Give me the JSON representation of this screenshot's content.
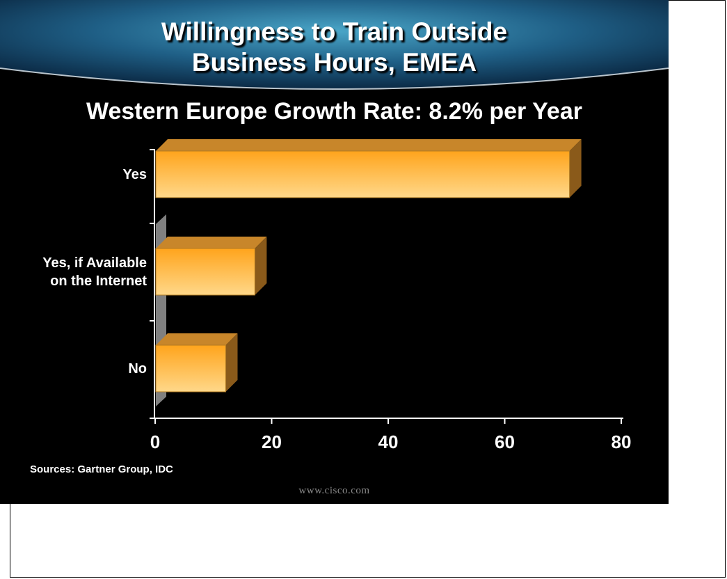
{
  "slide": {
    "title_line1": "Willingness to Train Outside",
    "title_line2": "Business Hours, EMEA",
    "subtitle": "Western Europe Growth Rate:  8.2% per Year",
    "source": "Sources: Gartner Group, IDC",
    "footer_url": "www.cisco.com"
  },
  "colors": {
    "background": "#000000",
    "bar_face_top": "#ffa41c",
    "bar_face_bottom": "#ffd88a",
    "bar_top": "#c8862a",
    "bar_side": "#8a5a1a",
    "wall": "#808080",
    "text": "#ffffff"
  },
  "chart_data": {
    "type": "bar",
    "orientation": "horizontal",
    "style": "3d",
    "categories": [
      "Yes",
      "Yes, if Available on the Internet",
      "No"
    ],
    "category_lines": [
      [
        "Yes"
      ],
      [
        "Yes, if Available",
        "on the Internet"
      ],
      [
        "No"
      ]
    ],
    "values": [
      71,
      17,
      12
    ],
    "xlim": [
      0,
      80
    ],
    "xticks": [
      "0",
      "20",
      "40",
      "60",
      "80"
    ],
    "title": "",
    "xlabel": "",
    "ylabel": "",
    "grid": false,
    "legend": "none"
  }
}
